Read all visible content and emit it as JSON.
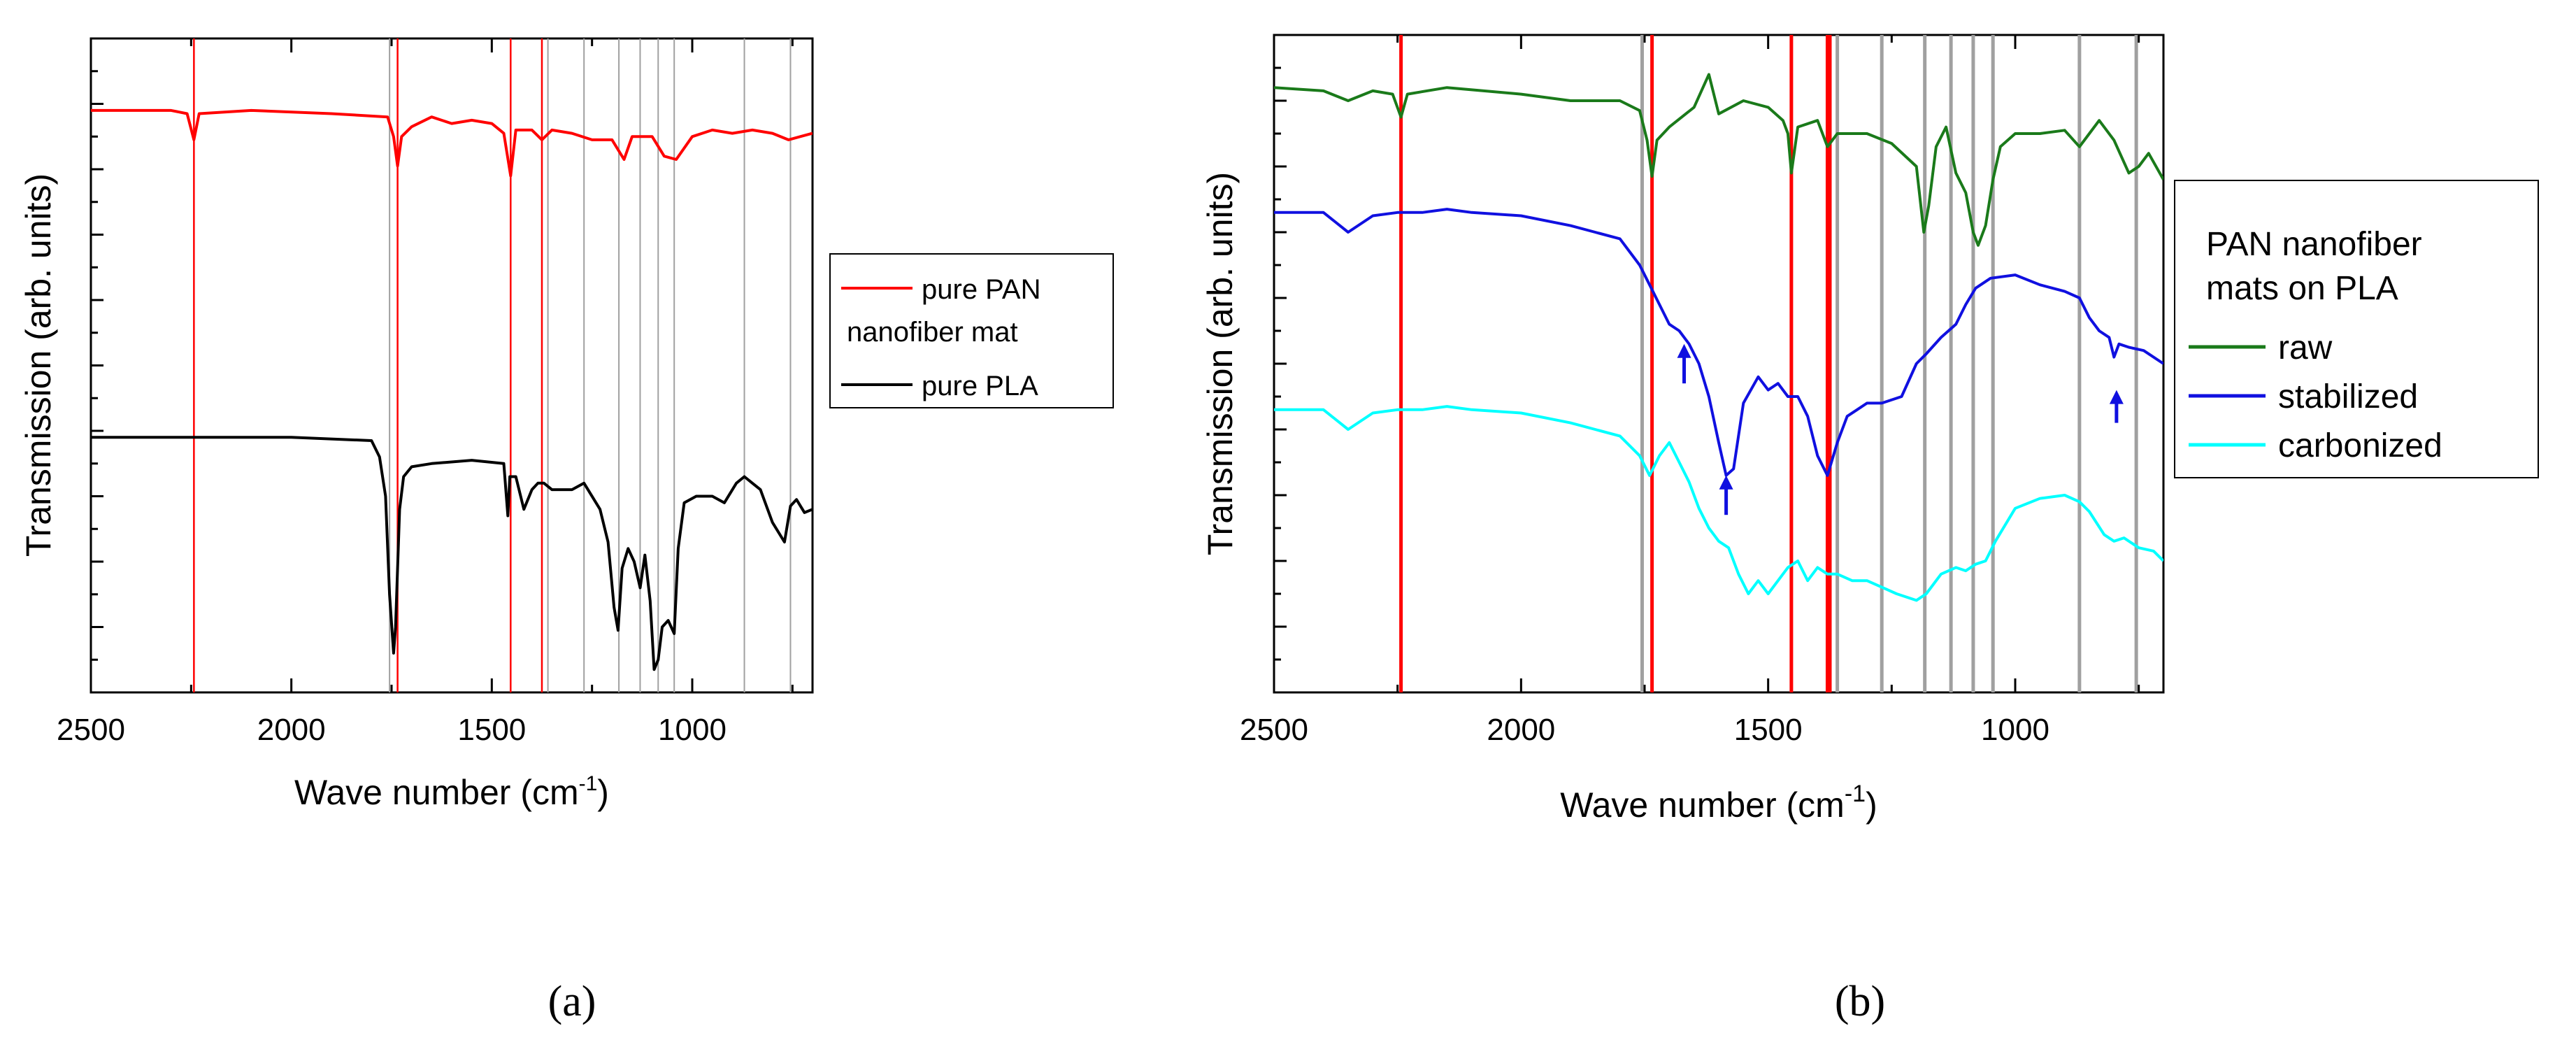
{
  "chart_data": [
    {
      "panel_label": "(a)",
      "type": "line",
      "xlabel": "Wave number (cm",
      "xlabel_sup": "-1",
      "xlabel_end": ")",
      "ylabel": "Transmission (arb. units)",
      "xlim": [
        2500,
        700
      ],
      "ylim": [
        0,
        10
      ],
      "xticks": [
        "2500",
        "2000",
        "1500",
        "1000"
      ],
      "legend_position": "right",
      "legend": [
        "pure PAN",
        "nanofiber mat",
        "pure PLA"
      ],
      "ref_lines_red": [
        2243,
        1735,
        1453,
        1375
      ],
      "ref_lines_gray": [
        1755,
        1360,
        1270,
        1183,
        1130,
        1085,
        1045,
        870,
        755
      ],
      "series": [
        {
          "name": "pure PAN nanofiber mat",
          "color": "#ff0000",
          "x": [
            2500,
            2300,
            2260,
            2243,
            2230,
            2100,
            1900,
            1760,
            1745,
            1735,
            1725,
            1700,
            1650,
            1600,
            1550,
            1500,
            1470,
            1453,
            1440,
            1400,
            1375,
            1350,
            1300,
            1250,
            1200,
            1170,
            1150,
            1100,
            1070,
            1040,
            1000,
            950,
            900,
            850,
            800,
            760,
            700
          ],
          "y": [
            8.9,
            8.9,
            8.85,
            8.45,
            8.85,
            8.9,
            8.85,
            8.8,
            8.5,
            8.05,
            8.5,
            8.65,
            8.8,
            8.7,
            8.75,
            8.7,
            8.55,
            7.9,
            8.6,
            8.6,
            8.45,
            8.6,
            8.55,
            8.45,
            8.45,
            8.15,
            8.5,
            8.5,
            8.2,
            8.15,
            8.5,
            8.6,
            8.55,
            8.6,
            8.55,
            8.45,
            8.55
          ]
        },
        {
          "name": "pure PLA",
          "color": "#000000",
          "x": [
            2500,
            2300,
            2000,
            1800,
            1780,
            1765,
            1755,
            1745,
            1740,
            1730,
            1720,
            1700,
            1650,
            1550,
            1470,
            1460,
            1455,
            1440,
            1420,
            1400,
            1385,
            1370,
            1350,
            1300,
            1270,
            1230,
            1210,
            1195,
            1185,
            1175,
            1160,
            1145,
            1130,
            1118,
            1105,
            1095,
            1085,
            1075,
            1060,
            1045,
            1035,
            1020,
            990,
            950,
            920,
            890,
            870,
            850,
            830,
            800,
            770,
            755,
            740,
            720,
            700
          ],
          "y": [
            3.9,
            3.9,
            3.9,
            3.85,
            3.6,
            3.0,
            1.5,
            0.6,
            1.0,
            2.8,
            3.3,
            3.45,
            3.5,
            3.55,
            3.5,
            2.7,
            3.3,
            3.3,
            2.8,
            3.1,
            3.2,
            3.2,
            3.1,
            3.1,
            3.2,
            2.8,
            2.3,
            1.3,
            0.95,
            1.9,
            2.2,
            2.0,
            1.6,
            2.1,
            1.4,
            0.35,
            0.5,
            1.0,
            1.1,
            0.9,
            2.2,
            2.9,
            3.0,
            3.0,
            2.9,
            3.2,
            3.3,
            3.2,
            3.1,
            2.6,
            2.3,
            2.85,
            2.95,
            2.75,
            2.8
          ]
        }
      ]
    },
    {
      "panel_label": "(b)",
      "type": "line",
      "xlabel": "Wave number (cm",
      "xlabel_sup": "-1",
      "xlabel_end": ")",
      "ylabel": "Transmission (arb. units)",
      "xlim": [
        2500,
        700
      ],
      "ylim": [
        0,
        10
      ],
      "xticks": [
        "2500",
        "2000",
        "1500",
        "1000"
      ],
      "legend_position": "right",
      "legend_title": [
        "PAN nanofiber",
        "mats on PLA"
      ],
      "legend": [
        "raw",
        "stabilized",
        "carbonized"
      ],
      "ref_lines_red": [
        2243,
        1735,
        1453,
        1380,
        1375
      ],
      "ref_lines_gray": [
        1755,
        1360,
        1270,
        1183,
        1130,
        1085,
        1045,
        870,
        755
      ],
      "arrows": [
        {
          "x": 1670,
          "y_from": 4.7,
          "y_to": 5.3
        },
        {
          "x": 1585,
          "y_from": 2.7,
          "y_to": 3.3
        },
        {
          "x": 795,
          "y_from": 4.1,
          "y_to": 4.6
        }
      ],
      "series": [
        {
          "name": "raw",
          "color": "#1a7a1a",
          "x": [
            2500,
            2400,
            2350,
            2300,
            2260,
            2243,
            2230,
            2150,
            2000,
            1900,
            1800,
            1760,
            1745,
            1735,
            1725,
            1700,
            1650,
            1620,
            1600,
            1550,
            1500,
            1470,
            1460,
            1453,
            1440,
            1400,
            1380,
            1360,
            1300,
            1250,
            1200,
            1185,
            1175,
            1160,
            1140,
            1120,
            1100,
            1085,
            1075,
            1060,
            1045,
            1030,
            1000,
            950,
            900,
            870,
            850,
            830,
            800,
            770,
            750,
            730,
            700
          ],
          "y": [
            9.2,
            9.15,
            9.0,
            9.15,
            9.1,
            8.75,
            9.1,
            9.2,
            9.1,
            9.0,
            9.0,
            8.85,
            8.4,
            7.85,
            8.4,
            8.6,
            8.9,
            9.4,
            8.8,
            9.0,
            8.9,
            8.7,
            8.5,
            7.9,
            8.6,
            8.7,
            8.3,
            8.5,
            8.5,
            8.35,
            8.0,
            7.0,
            7.4,
            8.3,
            8.6,
            7.9,
            7.6,
            7.0,
            6.8,
            7.1,
            7.8,
            8.3,
            8.5,
            8.5,
            8.55,
            8.3,
            8.5,
            8.7,
            8.4,
            7.9,
            8.0,
            8.2,
            7.8
          ]
        },
        {
          "name": "stabilized",
          "color": "#1010e0",
          "x": [
            2500,
            2400,
            2350,
            2300,
            2250,
            2200,
            2150,
            2100,
            2000,
            1900,
            1850,
            1800,
            1760,
            1740,
            1720,
            1700,
            1680,
            1660,
            1640,
            1620,
            1600,
            1585,
            1570,
            1550,
            1520,
            1500,
            1480,
            1460,
            1440,
            1420,
            1400,
            1380,
            1360,
            1340,
            1320,
            1300,
            1270,
            1230,
            1200,
            1180,
            1150,
            1120,
            1100,
            1080,
            1050,
            1000,
            950,
            900,
            870,
            850,
            830,
            810,
            800,
            790,
            770,
            740,
            700
          ],
          "y": [
            7.3,
            7.3,
            7.0,
            7.25,
            7.3,
            7.3,
            7.35,
            7.3,
            7.25,
            7.1,
            7.0,
            6.9,
            6.5,
            6.2,
            5.9,
            5.6,
            5.5,
            5.3,
            5.0,
            4.5,
            3.8,
            3.3,
            3.4,
            4.4,
            4.8,
            4.6,
            4.7,
            4.5,
            4.5,
            4.2,
            3.6,
            3.3,
            3.8,
            4.2,
            4.3,
            4.4,
            4.4,
            4.5,
            5.0,
            5.15,
            5.4,
            5.6,
            5.9,
            6.15,
            6.3,
            6.35,
            6.2,
            6.1,
            6.0,
            5.7,
            5.5,
            5.4,
            5.1,
            5.3,
            5.25,
            5.2,
            5.0
          ]
        },
        {
          "name": "carbonized",
          "color": "#00ffff",
          "x": [
            2500,
            2400,
            2350,
            2300,
            2250,
            2200,
            2150,
            2100,
            2000,
            1900,
            1850,
            1800,
            1760,
            1740,
            1720,
            1700,
            1680,
            1660,
            1640,
            1620,
            1600,
            1580,
            1560,
            1540,
            1520,
            1500,
            1480,
            1460,
            1440,
            1420,
            1400,
            1380,
            1360,
            1330,
            1300,
            1270,
            1240,
            1200,
            1180,
            1150,
            1120,
            1100,
            1080,
            1060,
            1040,
            1000,
            950,
            900,
            870,
            850,
            820,
            800,
            780,
            750,
            720,
            700
          ],
          "y": [
            4.3,
            4.3,
            4.0,
            4.25,
            4.3,
            4.3,
            4.35,
            4.3,
            4.25,
            4.1,
            4.0,
            3.9,
            3.6,
            3.3,
            3.6,
            3.8,
            3.5,
            3.2,
            2.8,
            2.5,
            2.3,
            2.2,
            1.8,
            1.5,
            1.7,
            1.5,
            1.7,
            1.9,
            2.0,
            1.7,
            1.9,
            1.8,
            1.8,
            1.7,
            1.7,
            1.6,
            1.5,
            1.4,
            1.5,
            1.8,
            1.9,
            1.85,
            1.95,
            2.0,
            2.3,
            2.8,
            2.95,
            3.0,
            2.9,
            2.75,
            2.4,
            2.3,
            2.35,
            2.2,
            2.15,
            2.0
          ]
        }
      ]
    }
  ]
}
